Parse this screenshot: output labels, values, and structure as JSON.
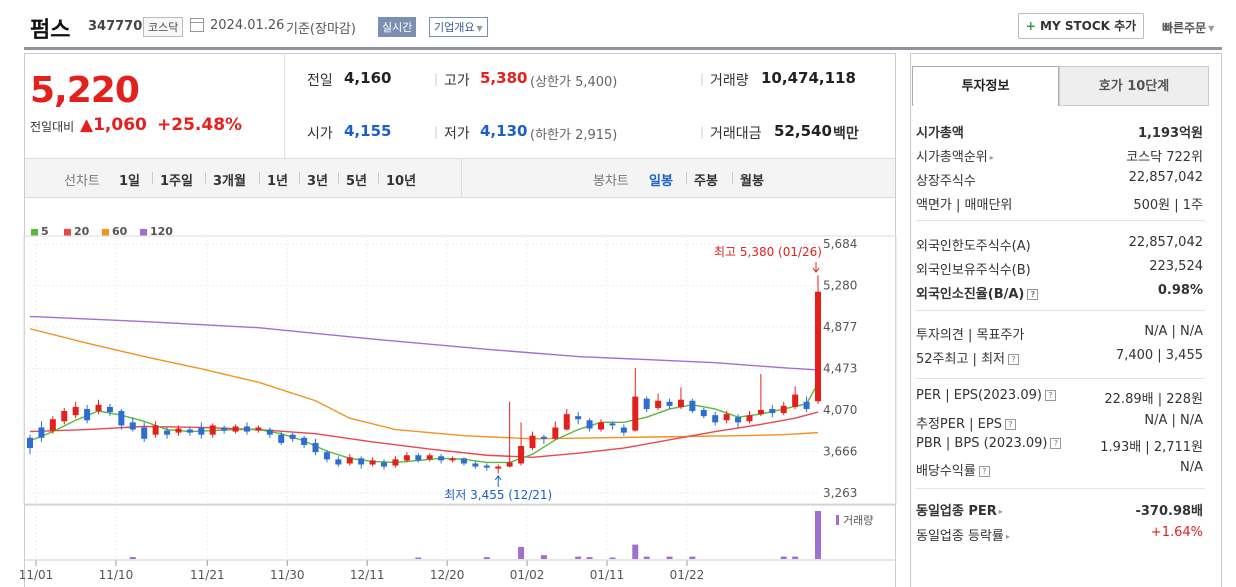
{
  "header": {
    "name": "펌스",
    "code": "347770",
    "market": "코스닥",
    "date": "2024.01.26",
    "basis": "기준(장마감)",
    "live": "실시간",
    "company": "기업개요",
    "mystock": "MY STOCK 추가",
    "quick": "빠른주문"
  },
  "price": {
    "current": "5,220",
    "diff_label": "전일대비",
    "diff": "1,060",
    "pct": "+25.48%"
  },
  "summary": {
    "prev_label": "전일",
    "prev": "4,160",
    "high_label": "고가",
    "high": "5,380",
    "upper": "(상한가 5,400)",
    "volume_label": "거래량",
    "volume": "10,474,118",
    "open_label": "시가",
    "open": "4,155",
    "low_label": "저가",
    "low": "4,130",
    "lower": "(하한가 2,915)",
    "amount_label": "거래대금",
    "amount": "52,540",
    "amount_unit": "백만"
  },
  "toolbar": {
    "line_label": "선차트",
    "line_items": [
      "1일",
      "1주일",
      "3개월",
      "1년",
      "3년",
      "5년",
      "10년"
    ],
    "candle_label": "봉차트",
    "candle_items": [
      "일봉",
      "주봉",
      "월봉"
    ]
  },
  "legend": [
    "5",
    "20",
    "60",
    "120"
  ],
  "colors": {
    "ma5": "#5cb83c",
    "ma20": "#e8474c",
    "ma60": "#f39222",
    "ma120": "#a070d0",
    "up": "#e4201d",
    "down": "#2c6fd1"
  },
  "chart_data": {
    "type": "candlestick",
    "xticks": [
      "11/01",
      "11/10",
      "11/21",
      "11/30",
      "12/11",
      "12/20",
      "01/02",
      "01/11",
      "01/22"
    ],
    "yticks": [
      "5,684",
      "5,280",
      "4,877",
      "4,473",
      "4,070",
      "3,666",
      "3,263"
    ],
    "ylim": [
      3263,
      5684
    ],
    "high_note": "최고 5,380 (01/26)",
    "low_note": "최저 3,455 (12/21)",
    "volume_label": "거래량",
    "candles": [
      [
        3800,
        3700,
        3830,
        3640
      ],
      [
        3900,
        3800,
        3960,
        3760
      ],
      [
        3870,
        3980,
        4010,
        3840
      ],
      [
        3960,
        4060,
        4090,
        3930
      ],
      [
        4020,
        4100,
        4150,
        3990
      ],
      [
        4080,
        3970,
        4120,
        3940
      ],
      [
        4060,
        4120,
        4170,
        4030
      ],
      [
        4100,
        4050,
        4130,
        4010
      ],
      [
        4060,
        3920,
        4080,
        3880
      ],
      [
        3950,
        3880,
        4000,
        3860
      ],
      [
        3900,
        3790,
        3950,
        3760
      ],
      [
        3830,
        3920,
        3960,
        3800
      ],
      [
        3870,
        3830,
        3900,
        3790
      ],
      [
        3850,
        3890,
        3920,
        3820
      ],
      [
        3880,
        3850,
        3910,
        3820
      ],
      [
        3900,
        3830,
        3950,
        3790
      ],
      [
        3830,
        3920,
        3940,
        3800
      ],
      [
        3900,
        3870,
        3920,
        3840
      ],
      [
        3860,
        3910,
        3930,
        3840
      ],
      [
        3910,
        3860,
        3950,
        3830
      ],
      [
        3870,
        3900,
        3920,
        3850
      ],
      [
        3880,
        3830,
        3900,
        3800
      ],
      [
        3830,
        3750,
        3860,
        3730
      ],
      [
        3830,
        3790,
        3850,
        3760
      ],
      [
        3800,
        3730,
        3820,
        3700
      ],
      [
        3750,
        3660,
        3790,
        3630
      ],
      [
        3660,
        3590,
        3680,
        3560
      ],
      [
        3590,
        3540,
        3620,
        3520
      ],
      [
        3550,
        3610,
        3640,
        3530
      ],
      [
        3600,
        3540,
        3620,
        3500
      ],
      [
        3540,
        3580,
        3610,
        3520
      ],
      [
        3560,
        3520,
        3590,
        3490
      ],
      [
        3530,
        3590,
        3620,
        3510
      ],
      [
        3580,
        3630,
        3660,
        3560
      ],
      [
        3630,
        3580,
        3650,
        3560
      ],
      [
        3590,
        3630,
        3650,
        3570
      ],
      [
        3620,
        3580,
        3640,
        3550
      ],
      [
        3580,
        3600,
        3620,
        3560
      ],
      [
        3600,
        3550,
        3610,
        3530
      ],
      [
        3550,
        3520,
        3570,
        3500
      ],
      [
        3530,
        3510,
        3550,
        3480
      ],
      [
        3500,
        3520,
        3540,
        3455
      ],
      [
        3520,
        3560,
        4150,
        3510
      ],
      [
        3550,
        3720,
        3950,
        3530
      ],
      [
        3700,
        3820,
        3860,
        3680
      ],
      [
        3810,
        3790,
        3830,
        3740
      ],
      [
        3790,
        3900,
        3960,
        3780
      ],
      [
        3880,
        4030,
        4080,
        3870
      ],
      [
        4010,
        3980,
        4050,
        3930
      ],
      [
        3970,
        3890,
        3990,
        3860
      ],
      [
        3880,
        3950,
        3980,
        3860
      ],
      [
        3940,
        3920,
        3960,
        3880
      ],
      [
        3900,
        3850,
        3930,
        3820
      ],
      [
        3870,
        4200,
        4480,
        3860
      ],
      [
        4180,
        4080,
        4200,
        4050
      ],
      [
        4090,
        4160,
        4230,
        4070
      ],
      [
        4150,
        4110,
        4180,
        4080
      ],
      [
        4100,
        4170,
        4290,
        4080
      ],
      [
        4160,
        4060,
        4180,
        4040
      ],
      [
        4070,
        4010,
        4090,
        3990
      ],
      [
        4020,
        3950,
        4050,
        3920
      ],
      [
        3970,
        4030,
        4060,
        3940
      ],
      [
        4000,
        3950,
        4030,
        3900
      ],
      [
        3960,
        4020,
        4060,
        3940
      ],
      [
        4030,
        4070,
        4420,
        4010
      ],
      [
        4080,
        4040,
        4120,
        4000
      ],
      [
        4040,
        4110,
        4150,
        4020
      ],
      [
        4100,
        4220,
        4300,
        4080
      ],
      [
        4150,
        4080,
        4200,
        4050
      ],
      [
        4155,
        5220,
        5380,
        4130
      ]
    ],
    "ma5": [
      [
        0,
        3770
      ],
      [
        2,
        3860
      ],
      [
        4,
        3970
      ],
      [
        6,
        4060
      ],
      [
        8,
        4020
      ],
      [
        10,
        3960
      ],
      [
        12,
        3880
      ],
      [
        14,
        3860
      ],
      [
        16,
        3870
      ],
      [
        18,
        3880
      ],
      [
        20,
        3880
      ],
      [
        22,
        3840
      ],
      [
        24,
        3770
      ],
      [
        26,
        3670
      ],
      [
        28,
        3600
      ],
      [
        30,
        3570
      ],
      [
        32,
        3560
      ],
      [
        34,
        3580
      ],
      [
        36,
        3600
      ],
      [
        38,
        3590
      ],
      [
        40,
        3560
      ],
      [
        42,
        3560
      ],
      [
        44,
        3640
      ],
      [
        46,
        3780
      ],
      [
        48,
        3880
      ],
      [
        50,
        3950
      ],
      [
        52,
        3950
      ],
      [
        54,
        4000
      ],
      [
        56,
        4080
      ],
      [
        58,
        4120
      ],
      [
        60,
        4080
      ],
      [
        62,
        4000
      ],
      [
        64,
        4030
      ],
      [
        66,
        4080
      ],
      [
        68,
        4130
      ],
      [
        69,
        4330
      ]
    ],
    "ma20": [
      [
        0,
        3860
      ],
      [
        5,
        3880
      ],
      [
        10,
        3910
      ],
      [
        15,
        3900
      ],
      [
        20,
        3880
      ],
      [
        25,
        3840
      ],
      [
        30,
        3760
      ],
      [
        35,
        3690
      ],
      [
        40,
        3630
      ],
      [
        44,
        3610
      ],
      [
        48,
        3650
      ],
      [
        52,
        3700
      ],
      [
        56,
        3780
      ],
      [
        60,
        3860
      ],
      [
        64,
        3930
      ],
      [
        67,
        3990
      ],
      [
        69,
        4050
      ]
    ],
    "ma60": [
      [
        0,
        4860
      ],
      [
        5,
        4720
      ],
      [
        10,
        4590
      ],
      [
        15,
        4470
      ],
      [
        20,
        4340
      ],
      [
        25,
        4160
      ],
      [
        28,
        3990
      ],
      [
        32,
        3880
      ],
      [
        38,
        3820
      ],
      [
        44,
        3790
      ],
      [
        50,
        3800
      ],
      [
        56,
        3810
      ],
      [
        62,
        3820
      ],
      [
        66,
        3830
      ],
      [
        69,
        3850
      ]
    ],
    "ma120": [
      [
        0,
        4980
      ],
      [
        10,
        4930
      ],
      [
        20,
        4870
      ],
      [
        30,
        4760
      ],
      [
        40,
        4660
      ],
      [
        48,
        4590
      ],
      [
        54,
        4560
      ],
      [
        60,
        4530
      ],
      [
        66,
        4480
      ],
      [
        69,
        4460
      ]
    ],
    "volume": [
      [
        43,
        0.25
      ],
      [
        53,
        0.3
      ],
      [
        54,
        0.05
      ],
      [
        56,
        0.05
      ],
      [
        58,
        0.05
      ],
      [
        66,
        0.05
      ],
      [
        67,
        0.05
      ],
      [
        69,
        1.0
      ],
      [
        9,
        0.04
      ],
      [
        34,
        0.03
      ],
      [
        40,
        0.04
      ],
      [
        45,
        0.08
      ],
      [
        48,
        0.05
      ],
      [
        49,
        0.04
      ],
      [
        51,
        0.03
      ]
    ]
  },
  "invest": {
    "tab1": "투자정보",
    "tab2": "호가 10단계",
    "rows": [
      {
        "k": "시가총액",
        "v": "1,193억원",
        "bold": true
      },
      {
        "k": "시가총액순위",
        "v": "코스닥 722위",
        "caret": true
      },
      {
        "k": "상장주식수",
        "v": "22,857,042"
      },
      {
        "k": "액면가 | 매매단위",
        "v": "500원 | 1주"
      },
      {
        "k": "외국인한도주식수(A)",
        "v": "22,857,042"
      },
      {
        "k": "외국인보유주식수(B)",
        "v": "223,524"
      },
      {
        "k": "외국인소진율(B/A)",
        "v": "0.98%",
        "bold": true,
        "q": true
      },
      {
        "k": "투자의견 | 목표주가",
        "v": "N/A | N/A"
      },
      {
        "k": "52주최고 | 최저",
        "v": "7,400 | 3,455",
        "q": true
      },
      {
        "k": "PER | EPS(2023.09)",
        "v": "22.89배 | 228원",
        "q": true
      },
      {
        "k": "추정PER | EPS",
        "v": "N/A | N/A",
        "q": true
      },
      {
        "k": "PBR | BPS (2023.09)",
        "v": "1.93배 | 2,711원",
        "q": true
      },
      {
        "k": "배당수익률",
        "v": "N/A",
        "q": true
      },
      {
        "k": "동일업종 PER",
        "v": "-370.98배",
        "bold": true,
        "caret": true
      },
      {
        "k": "동일업종 등락률",
        "v": "+1.64%",
        "caret": true,
        "red": true
      }
    ]
  }
}
